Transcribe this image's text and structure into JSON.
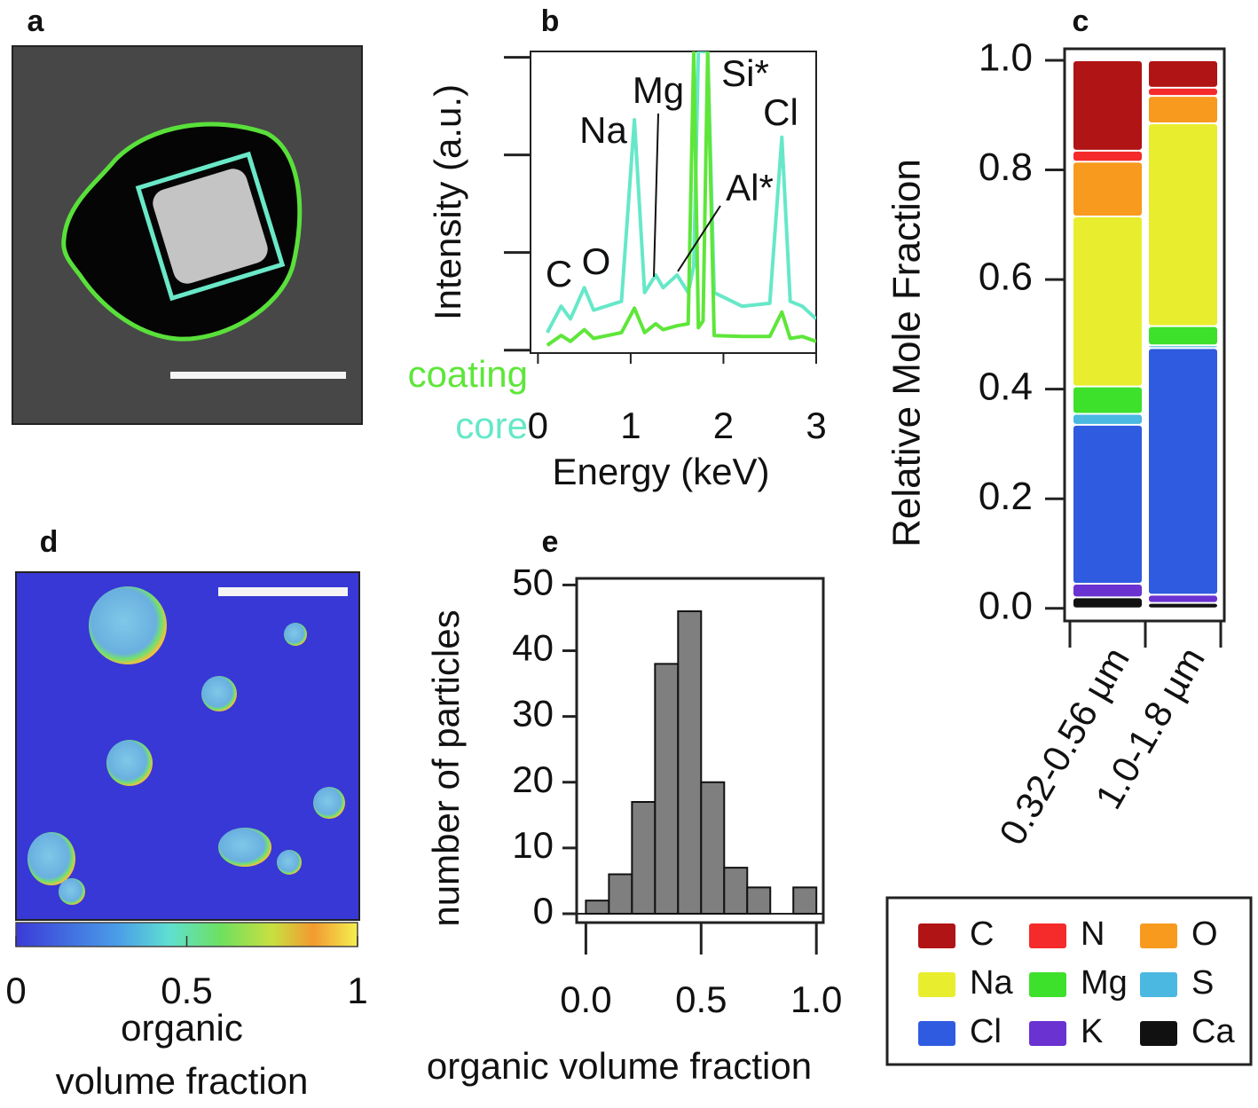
{
  "images": {
    "a": {
      "panel": "a"
    },
    "d": {
      "panel": "d",
      "colorbar": {
        "lim": [
          0,
          1
        ],
        "ticks": [
          0,
          0.5,
          1
        ],
        "label": [
          "organic",
          "volume fraction"
        ]
      }
    }
  },
  "chart_data": [
    {
      "type": "line",
      "panel": "b",
      "xlabel": "Energy (keV)",
      "ylabel": "Intensity (a.u.)",
      "xlim": [
        -0.08,
        3.0
      ],
      "xticks": [
        0,
        1,
        2,
        3
      ],
      "ylim": [
        -0.03,
        3.06
      ],
      "yticks": [
        0,
        1,
        2,
        3
      ],
      "ytick_labels": false,
      "x": [
        0.1,
        0.25,
        0.35,
        0.5,
        0.6,
        0.9,
        1.04,
        1.15,
        1.27,
        1.35,
        1.5,
        1.62,
        1.68,
        1.73,
        1.78,
        1.83,
        1.9,
        2.2,
        2.5,
        2.63,
        2.72,
        2.85,
        3.0
      ],
      "series": [
        {
          "name": "coating",
          "color": "#5ee63a",
          "values": [
            0.05,
            0.15,
            0.09,
            0.21,
            0.12,
            0.18,
            0.43,
            0.18,
            0.27,
            0.21,
            0.25,
            0.27,
            3.06,
            0.23,
            0.3,
            3.06,
            0.15,
            0.14,
            0.14,
            0.39,
            0.12,
            0.14,
            0.09
          ]
        },
        {
          "name": "core",
          "color": "#66e8c8",
          "values": [
            0.18,
            0.45,
            0.32,
            0.64,
            0.41,
            0.5,
            2.36,
            0.59,
            0.77,
            0.64,
            0.77,
            0.59,
            0.86,
            3.06,
            3.06,
            3.06,
            0.59,
            0.45,
            0.48,
            2.18,
            0.5,
            0.45,
            0.32
          ]
        }
      ],
      "annotations": [
        "C",
        "O",
        "Na",
        "Mg",
        "Si*",
        "Al*",
        "Cl"
      ]
    },
    {
      "type": "stacked_bar",
      "panel": "c",
      "ylabel": "Relative Mole Fraction",
      "categories": [
        "0.32-0.56 µm",
        "1.0-1.8 µm"
      ],
      "ylim": [
        -0.023,
        1.021
      ],
      "yticks": [
        {
          "value": 0,
          "label": "0.0"
        },
        {
          "value": 0.2,
          "label": "0.2"
        },
        {
          "value": 0.4,
          "label": "0.4"
        },
        {
          "value": 0.6,
          "label": "0.6"
        },
        {
          "value": 0.8,
          "label": "0.8"
        },
        {
          "value": 1,
          "label": "1.0"
        }
      ],
      "series": [
        {
          "name": "C",
          "color": "#b01414",
          "values": [
            0.165,
            0.05
          ]
        },
        {
          "name": "N",
          "color": "#f52a2a",
          "values": [
            0.02,
            0.015
          ]
        },
        {
          "name": "O",
          "color": "#f79a1e",
          "values": [
            0.1,
            0.05
          ]
        },
        {
          "name": "Na",
          "color": "#e8ee2e",
          "values": [
            0.31,
            0.37
          ]
        },
        {
          "name": "Mg",
          "color": "#3de02a",
          "values": [
            0.05,
            0.035
          ]
        },
        {
          "name": "S",
          "color": "#4ab8e0",
          "values": [
            0.02,
            0.005
          ]
        },
        {
          "name": "Cl",
          "color": "#2f5be0",
          "values": [
            0.29,
            0.45
          ]
        },
        {
          "name": "K",
          "color": "#6a32d0",
          "values": [
            0.025,
            0.015
          ]
        },
        {
          "name": "Ca",
          "color": "#111111",
          "values": [
            0.02,
            0.01
          ]
        }
      ]
    },
    {
      "type": "histogram",
      "panel": "e",
      "xlabel": "organic volume fraction",
      "ylabel": "number of particles",
      "bins": [
        0,
        0.1,
        0.2,
        0.3,
        0.4,
        0.5,
        0.6,
        0.7,
        0.8,
        0.9,
        1.0
      ],
      "values": [
        2,
        6,
        17,
        38,
        46,
        20,
        7,
        4,
        0,
        4
      ],
      "color": "#7f7f7f",
      "xlim": [
        -0.04,
        1.03
      ],
      "xticks": [
        {
          "value": 0,
          "label": "0.0"
        },
        0.5,
        {
          "value": 1,
          "label": "1.0"
        }
      ],
      "ylim": [
        -1.35,
        51
      ],
      "yticks": [
        0,
        10,
        20,
        30,
        40,
        50
      ]
    }
  ]
}
